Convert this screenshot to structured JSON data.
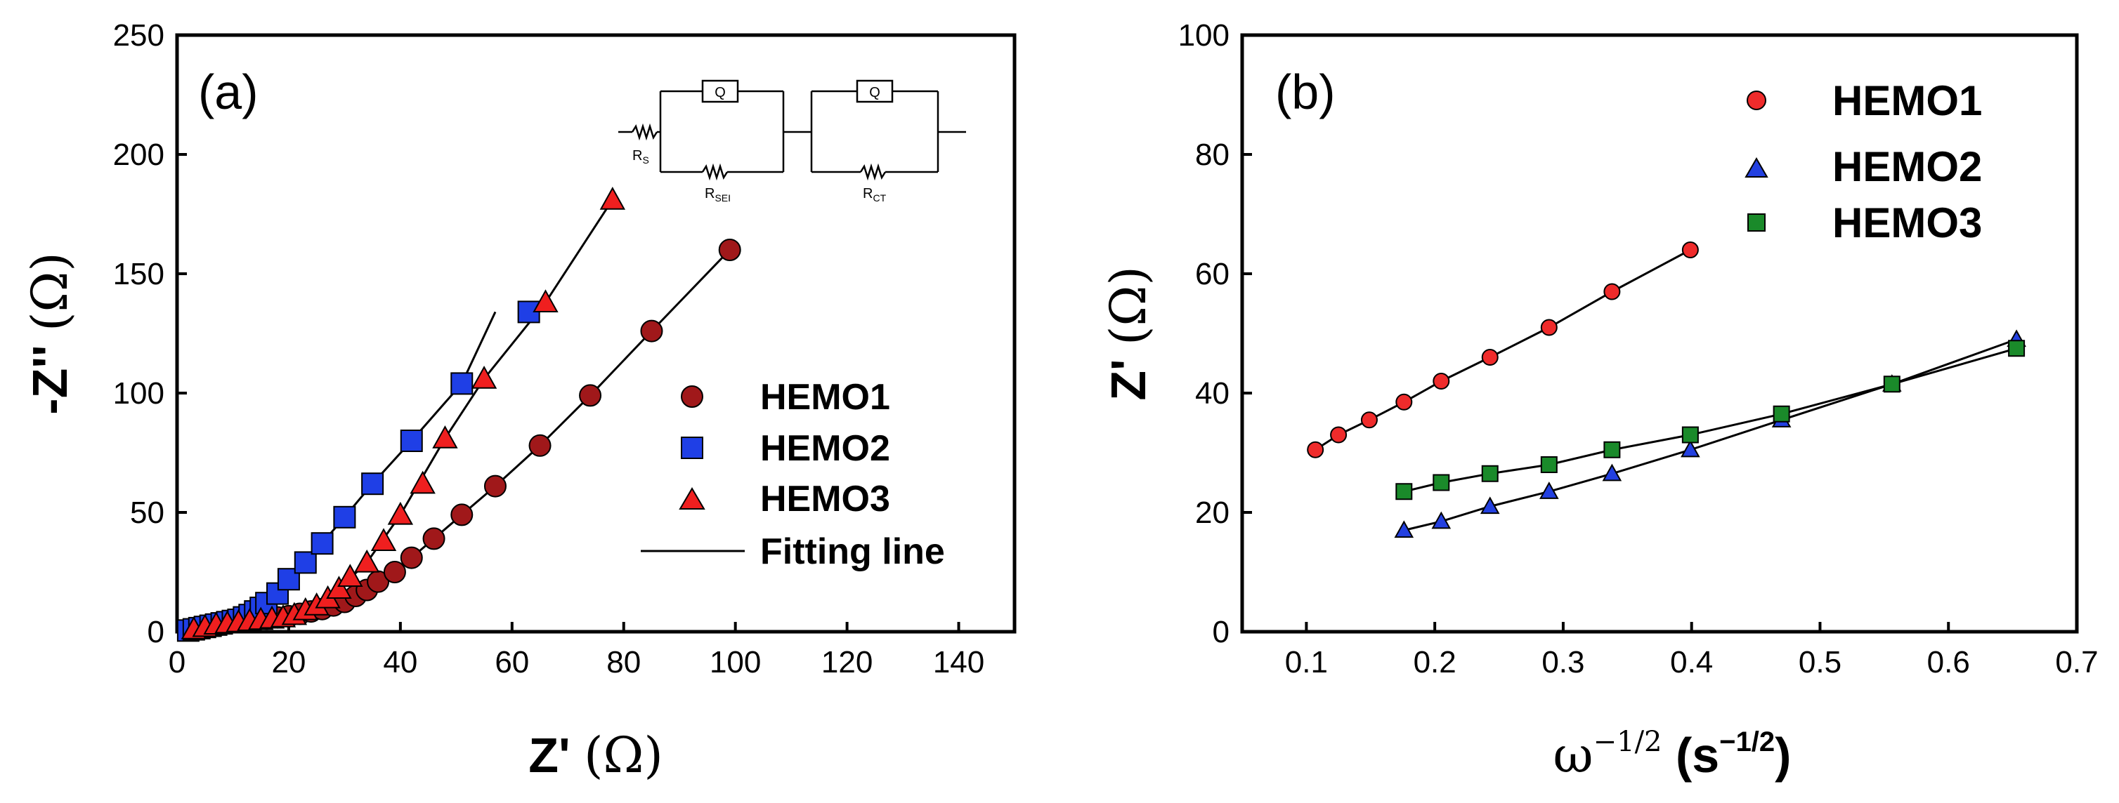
{
  "chart_data": [
    {
      "type": "scatter",
      "panel_label": "(a)",
      "xlabel": "Z'",
      "xlabel_unit": "(Ω)",
      "ylabel": "-Z''",
      "ylabel_unit": "(Ω)",
      "xlim": [
        0,
        150
      ],
      "ylim": [
        0,
        250
      ],
      "xticks": [
        0,
        20,
        40,
        60,
        80,
        100,
        120,
        140
      ],
      "yticks": [
        0,
        50,
        100,
        150,
        200,
        250
      ],
      "legend_position": "right",
      "circuit": {
        "labels": [
          "Q",
          "Q"
        ],
        "resistors": [
          "R",
          "R",
          "R"
        ],
        "resistor_subs": [
          "S",
          "SEI",
          "CT"
        ]
      },
      "fit_label": "Fitting line",
      "series": [
        {
          "name": "HEMO1",
          "marker": "circle",
          "color": "#a0181a",
          "x": [
            3,
            4,
            5,
            6,
            7,
            8,
            9,
            10,
            12,
            14,
            16,
            18,
            20,
            22,
            24,
            26,
            28,
            30,
            32,
            34,
            36,
            39,
            42,
            46,
            51,
            57,
            65,
            74,
            85,
            99
          ],
          "y": [
            1,
            1.5,
            2,
            2.5,
            3,
            3,
            3.5,
            4,
            4.5,
            5,
            5.5,
            6,
            6.5,
            7.5,
            8.5,
            9.5,
            11,
            12.5,
            15,
            17.5,
            21,
            25,
            31,
            39,
            49,
            61,
            78,
            99,
            126,
            160
          ],
          "fit": {
            "x": [
              3,
              8,
              14,
              20,
              26,
              32,
              36,
              42,
              51,
              57,
              65,
              74,
              85,
              99
            ],
            "y": [
              1,
              3,
              5,
              6.5,
              9.5,
              15,
              21,
              31,
              49,
              61,
              78,
              99,
              126,
              160
            ]
          }
        },
        {
          "name": "HEMO2",
          "marker": "square",
          "color": "#1f3fe6",
          "x": [
            2,
            3,
            4,
            5,
            6,
            7,
            8,
            9,
            10,
            11,
            12,
            13,
            14,
            15,
            16,
            18,
            20,
            23,
            26,
            30,
            35,
            42,
            51,
            63
          ],
          "y": [
            0.5,
            1,
            1.5,
            2,
            2.5,
            3,
            3.5,
            4,
            4.5,
            5,
            6,
            7,
            8.5,
            10,
            12,
            16,
            22,
            29,
            37,
            48,
            62,
            80,
            104,
            134
          ],
          "fit": {
            "x": [
              2,
              6,
              10,
              14,
              18,
              23,
              30,
              35,
              42,
              51,
              57
            ],
            "y": [
              0.5,
              2.5,
              4.5,
              8.5,
              16,
              29,
              48,
              62,
              80,
              104,
              134
            ]
          }
        },
        {
          "name": "HEMO3",
          "marker": "triangle",
          "color": "#ef1f1f",
          "x": [
            3,
            5,
            7,
            9,
            11,
            13,
            15,
            17,
            19,
            21,
            23,
            25,
            27,
            29,
            31,
            34,
            37,
            40,
            44,
            48,
            55,
            66,
            78
          ],
          "y": [
            1,
            2,
            3,
            3.5,
            4,
            4.5,
            5,
            5.5,
            6,
            7,
            9,
            11,
            14,
            18,
            23,
            29,
            38,
            49,
            62,
            81,
            106,
            138,
            181
          ],
          "fit": {
            "x": [
              3,
              9,
              15,
              21,
              25,
              29,
              34,
              40,
              48,
              55,
              66,
              78
            ],
            "y": [
              1,
              3.5,
              5,
              7,
              11,
              18,
              29,
              49,
              81,
              106,
              138,
              181
            ]
          }
        }
      ]
    },
    {
      "type": "scatter",
      "panel_label": "(b)",
      "xlabel": "ω",
      "xlabel_exp": "−1/2",
      "xlabel_unit_open": "(s",
      "xlabel_unit_exp": "−1/2",
      "xlabel_unit_close": ")",
      "ylabel": "Z'",
      "ylabel_unit": "(Ω)",
      "xlim": [
        0.05,
        0.7
      ],
      "ylim": [
        0,
        100
      ],
      "xticks": [
        0.1,
        0.2,
        0.3,
        0.4,
        0.5,
        0.6,
        0.7
      ],
      "yticks": [
        0,
        20,
        40,
        60,
        80,
        100
      ],
      "legend_position": "top-right",
      "series": [
        {
          "name": "HEMO1",
          "marker": "circle",
          "color": "#ef2b2b",
          "x": [
            0.107,
            0.125,
            0.149,
            0.176,
            0.205,
            0.243,
            0.289,
            0.338,
            0.399
          ],
          "y": [
            30.5,
            33,
            35.5,
            38.5,
            42,
            46,
            51,
            57,
            64
          ]
        },
        {
          "name": "HEMO2",
          "marker": "triangle",
          "color": "#2340e0",
          "x": [
            0.176,
            0.205,
            0.243,
            0.289,
            0.338,
            0.399,
            0.47,
            0.556,
            0.653
          ],
          "y": [
            17,
            18.5,
            21,
            23.5,
            26.5,
            30.5,
            35.5,
            41.5,
            49
          ]
        },
        {
          "name": "HEMO3",
          "marker": "square",
          "color": "#1a8a2a",
          "x": [
            0.176,
            0.205,
            0.243,
            0.289,
            0.338,
            0.399,
            0.47,
            0.556,
            0.653
          ],
          "y": [
            23.5,
            25,
            26.5,
            28,
            30.5,
            33,
            36.5,
            41.5,
            47.5
          ]
        }
      ]
    }
  ]
}
